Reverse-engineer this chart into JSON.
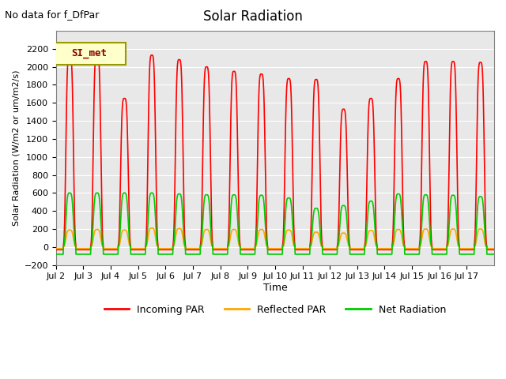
{
  "title": "Solar Radiation",
  "subtitle": "No data for f_DfPar",
  "ylabel": "Solar Radiation (W/m2 or um/m2/s)",
  "xlabel": "Time",
  "legend_label": "SI_met",
  "ylim": [
    -200,
    2400
  ],
  "yticks": [
    -200,
    0,
    200,
    400,
    600,
    800,
    1000,
    1200,
    1400,
    1600,
    1800,
    2000,
    2200
  ],
  "xtick_labels": [
    "Jul 2",
    "Jul 3",
    "Jul 4",
    "Jul 5",
    "Jul 6",
    "Jul 7",
    "Jul 8",
    "Jul 9",
    "Jul 10",
    "Jul 11",
    "Jul 12",
    "Jul 13",
    "Jul 14",
    "Jul 15",
    "Jul 16",
    "Jul 17"
  ],
  "xtick_positions": [
    0,
    1,
    2,
    3,
    4,
    5,
    6,
    7,
    8,
    9,
    10,
    11,
    12,
    13,
    14,
    15
  ],
  "colors": {
    "incoming": "#ff0000",
    "reflected": "#ffa500",
    "net": "#00cc00",
    "background": "#e8e8e8",
    "legend_box_bg": "#ffffcc",
    "legend_box_border": "#999900",
    "grid": "#ffffff"
  },
  "line_width": 1.2,
  "day_peaks_incoming": [
    2130,
    2150,
    1650,
    2130,
    2080,
    2000,
    1950,
    1920,
    1870,
    1860,
    1530,
    1650,
    1870,
    2060,
    2060,
    2050
  ],
  "day_peaks_reflected": [
    190,
    195,
    190,
    210,
    205,
    195,
    195,
    195,
    190,
    165,
    155,
    185,
    195,
    200,
    200,
    200
  ],
  "day_peaks_net": [
    600,
    600,
    600,
    600,
    590,
    580,
    580,
    575,
    545,
    430,
    460,
    510,
    590,
    580,
    575,
    560
  ],
  "n_days": 16,
  "points_per_day": 200,
  "t_rise": 0.27,
  "t_set": 0.73,
  "night_incoming": -30,
  "night_reflected": -15,
  "night_net": -80
}
